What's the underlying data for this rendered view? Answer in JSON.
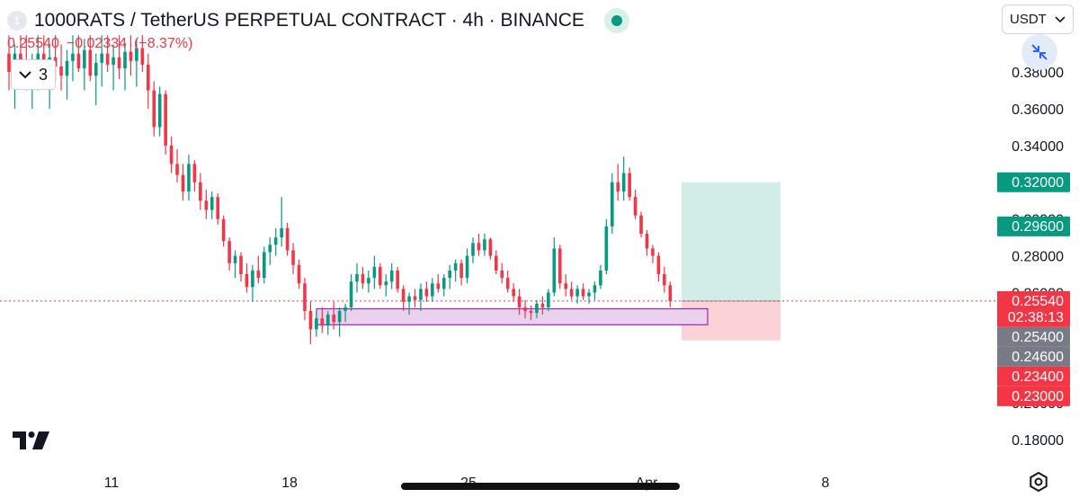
{
  "header": {
    "title": "1000RATS / TetherUS PERPETUAL CONTRACT · 4h · BINANCE",
    "symbol_icon": "1",
    "live_status_color": "#089981"
  },
  "ohlc": {
    "last": "0.25540",
    "change": "−0.02334",
    "change_pct": "(−8.37%)"
  },
  "indicators_toggle": {
    "count": "3",
    "icon": "chevron-down-icon"
  },
  "currency": {
    "label": "USDT",
    "icon": "chevron-down-icon"
  },
  "colors": {
    "up": "#089981",
    "down": "#f23645",
    "zone_fill": "#ead2ef",
    "zone_stroke": "#9c27b0",
    "target_fill": "#d2ede8",
    "stop_fill": "#fbd3d6"
  },
  "chart_data": {
    "type": "candlestick",
    "symbol": "1000RATS / TetherUS PERPETUAL CONTRACT",
    "interval": "4h",
    "exchange": "BINANCE",
    "ylim": [
      0.17,
      0.395
    ],
    "y_ticks": [
      "0.38000",
      "0.36000",
      "0.34000",
      "0.32000",
      "0.30000",
      "0.28000",
      "0.26000",
      "0.20000",
      "0.18000"
    ],
    "x_ticks": [
      "11",
      "18",
      "25",
      "Apr",
      "8"
    ],
    "price_labels": [
      {
        "text": "0.32000",
        "value": 0.32,
        "color": "#089981"
      },
      {
        "text": "0.29600",
        "value": 0.296,
        "color": "#089981"
      },
      {
        "text": "0.25540",
        "value": 0.2554,
        "color": "#f23645",
        "countdown": "02:38:13"
      },
      {
        "text": "0.25400",
        "value": 0.254,
        "color": "#787b86"
      },
      {
        "text": "0.24600",
        "value": 0.246,
        "color": "#787b86"
      },
      {
        "text": "0.23400",
        "value": 0.234,
        "color": "#f23645"
      },
      {
        "text": "0.23000",
        "value": 0.23,
        "color": "#f23645"
      }
    ],
    "last_price": 0.2554,
    "demand_zone": {
      "top": 0.2512,
      "bottom": 0.2425
    },
    "position": {
      "entry": 0.2554,
      "target": 0.32,
      "stop": 0.234
    },
    "series": [
      {
        "name": "",
        "points": [
          [
            0.39,
            0.4,
            0.37,
            0.38
          ],
          [
            0.38,
            0.395,
            0.36,
            0.39
          ],
          [
            0.39,
            0.4,
            0.375,
            0.385
          ],
          [
            0.385,
            0.4,
            0.37,
            0.375
          ],
          [
            0.375,
            0.39,
            0.36,
            0.385
          ],
          [
            0.385,
            0.4,
            0.37,
            0.39
          ],
          [
            0.39,
            0.4,
            0.375,
            0.38
          ],
          [
            0.38,
            0.395,
            0.36,
            0.388
          ],
          [
            0.388,
            0.4,
            0.375,
            0.383
          ],
          [
            0.383,
            0.395,
            0.37,
            0.378
          ],
          [
            0.378,
            0.392,
            0.365,
            0.386
          ],
          [
            0.386,
            0.4,
            0.375,
            0.39
          ],
          [
            0.39,
            0.4,
            0.38,
            0.382
          ],
          [
            0.382,
            0.398,
            0.37,
            0.392
          ],
          [
            0.392,
            0.4,
            0.375,
            0.378
          ],
          [
            0.378,
            0.39,
            0.362,
            0.385
          ],
          [
            0.385,
            0.4,
            0.372,
            0.39
          ],
          [
            0.39,
            0.4,
            0.38,
            0.384
          ],
          [
            0.384,
            0.395,
            0.37,
            0.388
          ],
          [
            0.388,
            0.4,
            0.376,
            0.382
          ],
          [
            0.382,
            0.396,
            0.37,
            0.391
          ],
          [
            0.391,
            0.4,
            0.378,
            0.386
          ],
          [
            0.386,
            0.398,
            0.372,
            0.393
          ],
          [
            0.393,
            0.4,
            0.38,
            0.384
          ],
          [
            0.384,
            0.39,
            0.36,
            0.37
          ],
          [
            0.37,
            0.375,
            0.345,
            0.35
          ],
          [
            0.35,
            0.372,
            0.345,
            0.368
          ],
          [
            0.368,
            0.37,
            0.335,
            0.34
          ],
          [
            0.34,
            0.345,
            0.325,
            0.33
          ],
          [
            0.33,
            0.338,
            0.32,
            0.324
          ],
          [
            0.324,
            0.33,
            0.31,
            0.315
          ],
          [
            0.315,
            0.335,
            0.31,
            0.33
          ],
          [
            0.33,
            0.332,
            0.315,
            0.32
          ],
          [
            0.32,
            0.325,
            0.305,
            0.31
          ],
          [
            0.31,
            0.316,
            0.3,
            0.305
          ],
          [
            0.305,
            0.315,
            0.3,
            0.312
          ],
          [
            0.312,
            0.314,
            0.297,
            0.3
          ],
          [
            0.3,
            0.302,
            0.285,
            0.288
          ],
          [
            0.288,
            0.29,
            0.272,
            0.276
          ],
          [
            0.276,
            0.283,
            0.268,
            0.28
          ],
          [
            0.28,
            0.282,
            0.266,
            0.27
          ],
          [
            0.27,
            0.276,
            0.26,
            0.263
          ],
          [
            0.263,
            0.275,
            0.255,
            0.272
          ],
          [
            0.272,
            0.28,
            0.265,
            0.268
          ],
          [
            0.268,
            0.285,
            0.265,
            0.282
          ],
          [
            0.282,
            0.29,
            0.275,
            0.286
          ],
          [
            0.286,
            0.295,
            0.28,
            0.29
          ],
          [
            0.29,
            0.312,
            0.285,
            0.295
          ],
          [
            0.295,
            0.298,
            0.28,
            0.283
          ],
          [
            0.283,
            0.287,
            0.27,
            0.275
          ],
          [
            0.275,
            0.278,
            0.262,
            0.265
          ],
          [
            0.265,
            0.268,
            0.245,
            0.25
          ],
          [
            0.25,
            0.255,
            0.232,
            0.24
          ],
          [
            0.24,
            0.25,
            0.236,
            0.246
          ],
          [
            0.246,
            0.252,
            0.238,
            0.242
          ],
          [
            0.242,
            0.25,
            0.237,
            0.248
          ],
          [
            0.248,
            0.255,
            0.24,
            0.244
          ],
          [
            0.244,
            0.252,
            0.236,
            0.25
          ],
          [
            0.25,
            0.254,
            0.244,
            0.252
          ],
          [
            0.252,
            0.27,
            0.25,
            0.266
          ],
          [
            0.266,
            0.276,
            0.26,
            0.27
          ],
          [
            0.27,
            0.274,
            0.262,
            0.265
          ],
          [
            0.265,
            0.272,
            0.26,
            0.268
          ],
          [
            0.268,
            0.28,
            0.262,
            0.274
          ],
          [
            0.274,
            0.276,
            0.262,
            0.264
          ],
          [
            0.264,
            0.27,
            0.258,
            0.266
          ],
          [
            0.266,
            0.276,
            0.262,
            0.272
          ],
          [
            0.272,
            0.274,
            0.26,
            0.262
          ],
          [
            0.262,
            0.264,
            0.25,
            0.255
          ],
          [
            0.255,
            0.26,
            0.248,
            0.258
          ],
          [
            0.258,
            0.262,
            0.252,
            0.256
          ],
          [
            0.256,
            0.265,
            0.25,
            0.262
          ],
          [
            0.262,
            0.266,
            0.255,
            0.258
          ],
          [
            0.258,
            0.268,
            0.255,
            0.265
          ],
          [
            0.265,
            0.27,
            0.26,
            0.262
          ],
          [
            0.262,
            0.27,
            0.258,
            0.268
          ],
          [
            0.268,
            0.275,
            0.262,
            0.272
          ],
          [
            0.272,
            0.278,
            0.266,
            0.276
          ],
          [
            0.276,
            0.278,
            0.264,
            0.268
          ],
          [
            0.268,
            0.284,
            0.265,
            0.28
          ],
          [
            0.28,
            0.29,
            0.276,
            0.287
          ],
          [
            0.287,
            0.292,
            0.28,
            0.283
          ],
          [
            0.283,
            0.292,
            0.28,
            0.289
          ],
          [
            0.289,
            0.29,
            0.278,
            0.28
          ],
          [
            0.28,
            0.283,
            0.27,
            0.272
          ],
          [
            0.272,
            0.276,
            0.265,
            0.268
          ],
          [
            0.268,
            0.272,
            0.26,
            0.262
          ],
          [
            0.262,
            0.265,
            0.255,
            0.258
          ],
          [
            0.258,
            0.262,
            0.248,
            0.252
          ],
          [
            0.252,
            0.256,
            0.246,
            0.25
          ],
          [
            0.25,
            0.253,
            0.245,
            0.249
          ],
          [
            0.249,
            0.256,
            0.246,
            0.254
          ],
          [
            0.254,
            0.258,
            0.248,
            0.252
          ],
          [
            0.252,
            0.262,
            0.25,
            0.26
          ],
          [
            0.26,
            0.29,
            0.258,
            0.284
          ],
          [
            0.284,
            0.286,
            0.262,
            0.265
          ],
          [
            0.265,
            0.27,
            0.258,
            0.262
          ],
          [
            0.262,
            0.266,
            0.256,
            0.258
          ],
          [
            0.258,
            0.264,
            0.254,
            0.262
          ],
          [
            0.262,
            0.265,
            0.256,
            0.258
          ],
          [
            0.258,
            0.262,
            0.254,
            0.26
          ],
          [
            0.26,
            0.266,
            0.256,
            0.264
          ],
          [
            0.264,
            0.275,
            0.262,
            0.272
          ],
          [
            0.272,
            0.3,
            0.27,
            0.296
          ],
          [
            0.296,
            0.325,
            0.292,
            0.32
          ],
          [
            0.32,
            0.33,
            0.31,
            0.315
          ],
          [
            0.315,
            0.334,
            0.31,
            0.325
          ],
          [
            0.325,
            0.328,
            0.31,
            0.312
          ],
          [
            0.312,
            0.316,
            0.3,
            0.302
          ],
          [
            0.302,
            0.304,
            0.29,
            0.292
          ],
          [
            0.292,
            0.294,
            0.28,
            0.284
          ],
          [
            0.284,
            0.286,
            0.276,
            0.28
          ],
          [
            0.28,
            0.282,
            0.266,
            0.27
          ],
          [
            0.27,
            0.274,
            0.26,
            0.264
          ],
          [
            0.264,
            0.266,
            0.252,
            0.2554
          ]
        ]
      }
    ]
  }
}
